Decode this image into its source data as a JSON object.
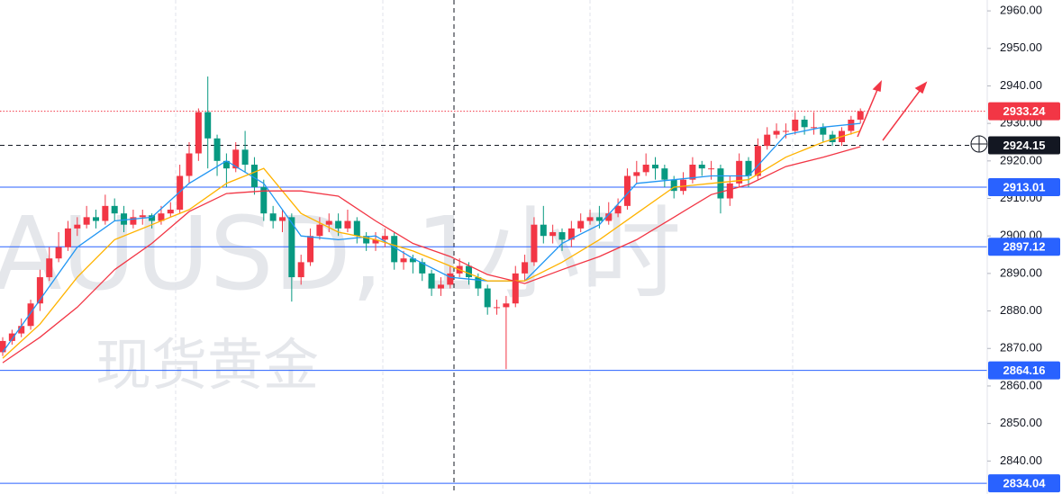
{
  "chart_data": {
    "type": "candlestick",
    "watermark": "AUUSD, 1小时",
    "watermark_sub": "现货黄金",
    "up_color": "#f23645",
    "down_color": "#089981",
    "ylim": [
      2831.2,
      2962.9
    ],
    "yticks": [
      {
        "value": 2840,
        "label": "2840.00"
      },
      {
        "value": 2850,
        "label": "2850.00"
      },
      {
        "value": 2860,
        "label": "2860.00"
      },
      {
        "value": 2870,
        "label": "2870.00"
      },
      {
        "value": 2880,
        "label": "2880.00"
      },
      {
        "value": 2890,
        "label": "2890.00"
      },
      {
        "value": 2900,
        "label": "2900.00"
      },
      {
        "value": 2910,
        "label": "2910.00"
      },
      {
        "value": 2920,
        "label": "2920.00"
      },
      {
        "value": 2930,
        "label": "2930.00"
      },
      {
        "value": 2940,
        "label": "2940.00"
      },
      {
        "value": 2950,
        "label": "2950.00"
      },
      {
        "value": 2960,
        "label": "2960.00"
      }
    ],
    "grid": false,
    "open": [
      2869,
      2872,
      2874,
      2876,
      2882,
      2889,
      2894,
      2897,
      2902,
      2903,
      2905,
      2904,
      2908,
      2906,
      2903,
      2905,
      2905.5,
      2904,
      2906,
      2907,
      2916,
      2922,
      2933,
      2926,
      2920,
      2918,
      2923,
      2919,
      2913,
      2906,
      2904,
      2905,
      2889,
      2893,
      2900,
      2903,
      2904,
      2902,
      2904,
      2900,
      2898,
      2899,
      2900,
      2893,
      2894,
      2893,
      2890,
      2886,
      2887,
      2890,
      2892,
      2889,
      2886,
      2881,
      2881,
      2882,
      2890,
      2893,
      2903,
      2900,
      2901,
      2899,
      2902,
      2904,
      2905,
      2904,
      2906,
      2908,
      2916,
      2917,
      2919,
      2918,
      2915,
      2912,
      2915,
      2919,
      2918,
      2918,
      2910,
      2914,
      2920,
      2916,
      2924,
      2927,
      2928,
      2928,
      2931,
      2929,
      2929,
      2927,
      2925,
      2928,
      2931
    ],
    "high": [
      2873,
      2875,
      2878,
      2883,
      2891,
      2897,
      2901,
      2904,
      2905,
      2908,
      2907,
      2911,
      2910,
      2908,
      2907,
      2907,
      2906,
      2908,
      2909,
      2919,
      2925,
      2934,
      2942.5,
      2927,
      2922,
      2925,
      2928,
      2921,
      2915,
      2908,
      2907,
      2906,
      2895,
      2902,
      2905,
      2906,
      2906,
      2907,
      2905,
      2901,
      2901,
      2902,
      2901,
      2896,
      2895,
      2894,
      2891,
      2889,
      2892,
      2894,
      2893,
      2890,
      2887,
      2883,
      2884,
      2892,
      2895,
      2905,
      2908,
      2903,
      2902,
      2904,
      2906,
      2907,
      2908,
      2909,
      2910,
      2918,
      2920,
      2922,
      2921,
      2919,
      2916,
      2917,
      2921,
      2920,
      2920,
      2919,
      2916,
      2922,
      2921,
      2926,
      2929,
      2930,
      2930,
      2933,
      2932,
      2933,
      2930,
      2928,
      2929,
      2932,
      2934
    ],
    "low": [
      2868,
      2871,
      2873,
      2875,
      2880,
      2888,
      2893,
      2896,
      2900,
      2902,
      2902,
      2903,
      2904,
      2901,
      2902,
      2903,
      2902,
      2903,
      2905,
      2906,
      2914,
      2920,
      2918,
      2916,
      2913,
      2917,
      2917,
      2911,
      2904,
      2902,
      2901,
      2882.5,
      2887,
      2892,
      2899,
      2901,
      2900,
      2901,
      2898,
      2896,
      2896,
      2897,
      2891,
      2891,
      2890,
      2888,
      2884,
      2884,
      2886,
      2889,
      2887,
      2884,
      2879,
      2879,
      2864.5,
      2881,
      2888,
      2892,
      2898,
      2898,
      2896,
      2897,
      2901,
      2903,
      2902,
      2903,
      2905,
      2907,
      2914,
      2916,
      2915,
      2913,
      2910,
      2911,
      2914,
      2916,
      2915,
      2906,
      2908,
      2913,
      2913,
      2915,
      2923,
      2926,
      2926,
      2927,
      2927,
      2927,
      2925,
      2924,
      2924,
      2927,
      2930
    ],
    "close": [
      2872,
      2874,
      2876,
      2882,
      2889,
      2894,
      2897,
      2902,
      2903,
      2905,
      2904,
      2908,
      2906,
      2903,
      2905,
      2905.5,
      2904,
      2906,
      2907,
      2916,
      2922,
      2933,
      2926,
      2920,
      2918,
      2923,
      2919,
      2913,
      2906,
      2904,
      2905,
      2889,
      2893,
      2900,
      2903,
      2904,
      2902,
      2904,
      2900,
      2898,
      2899,
      2900,
      2893,
      2894,
      2893,
      2890,
      2886,
      2887,
      2890,
      2892,
      2889,
      2886,
      2881,
      2881,
      2882,
      2890,
      2893,
      2903,
      2900,
      2901,
      2899,
      2902,
      2904,
      2905,
      2904,
      2906,
      2908,
      2916,
      2917,
      2919,
      2918,
      2915,
      2912,
      2915,
      2919,
      2918,
      2918,
      2910,
      2914,
      2920,
      2916,
      2924,
      2927,
      2928,
      2928,
      2931,
      2929,
      2929,
      2927,
      2925,
      2928,
      2931,
      2933.24
    ],
    "lines": {
      "x": [
        0,
        4,
        8,
        12,
        16,
        20,
        24,
        28,
        32,
        36,
        40,
        44,
        48,
        52,
        56,
        60,
        64,
        68,
        72,
        76,
        80,
        84,
        88,
        92
      ],
      "series": [
        {
          "color": "#2196f3",
          "values": [
            2869,
            2883,
            2897,
            2904,
            2905,
            2914,
            2920,
            2914,
            2900,
            2899,
            2900,
            2894,
            2889,
            2888,
            2888,
            2898,
            2903,
            2914,
            2915,
            2916,
            2916,
            2927,
            2929,
            2930
          ]
        },
        {
          "color": "#ffb300",
          "values": [
            2867.4,
            2876.5,
            2889,
            2899,
            2903,
            2907,
            2914,
            2918,
            2906,
            2901,
            2899,
            2896,
            2892,
            2888,
            2888,
            2893,
            2899,
            2906,
            2913,
            2914,
            2915,
            2921,
            2925,
            2928
          ]
        },
        {
          "color": "#f23645",
          "values": [
            2866.2,
            2873,
            2881,
            2891,
            2898,
            2906.5,
            2911.3,
            2912,
            2912,
            2910.6,
            2904,
            2898,
            2894.5,
            2889.7,
            2887.3,
            2891,
            2894.5,
            2899,
            2905,
            2911,
            2913.7,
            2918.5,
            2921,
            2923.8
          ]
        }
      ]
    },
    "levels": [
      {
        "value": 2933.24,
        "color": "#f23645",
        "style": "dotted"
      },
      {
        "value": 2924.15,
        "color": "#131722",
        "style": "dashed"
      },
      {
        "value": 2913.01,
        "color": "#2962ff",
        "style": "solid"
      },
      {
        "value": 2897.12,
        "color": "#2962ff",
        "style": "solid"
      },
      {
        "value": 2864.16,
        "color": "#2962ff",
        "style": "solid"
      },
      {
        "value": 2834.04,
        "color": "#2962ff",
        "style": "solid"
      }
    ]
  }
}
